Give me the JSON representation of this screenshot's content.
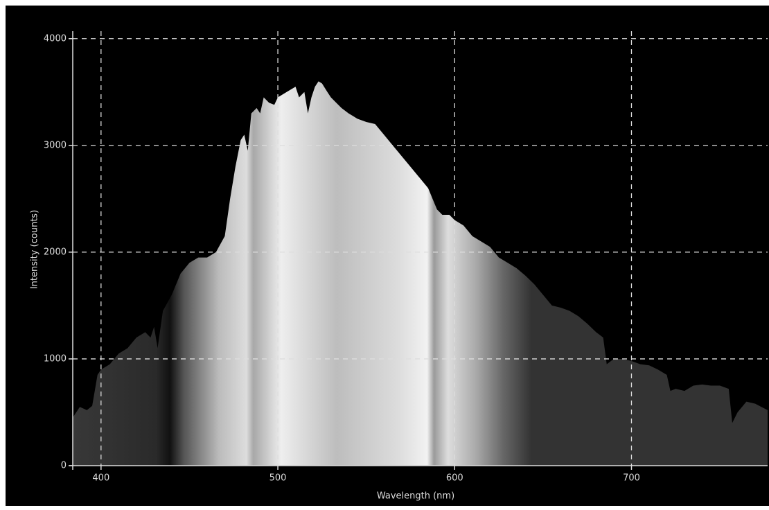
{
  "chart_data": {
    "type": "area",
    "x_label": "Wavelength (nm)",
    "y_label": "Intensity (counts)",
    "x": [
      384,
      388,
      392,
      395,
      398,
      400,
      405,
      410,
      415,
      420,
      425,
      428,
      430,
      432,
      435,
      440,
      445,
      450,
      455,
      460,
      465,
      470,
      473,
      476,
      479,
      481,
      483,
      485,
      488,
      490,
      492,
      495,
      498,
      500,
      505,
      510,
      512,
      515,
      517,
      519,
      521,
      523,
      525,
      528,
      530,
      533,
      536,
      540,
      545,
      550,
      555,
      560,
      565,
      570,
      575,
      580,
      585,
      590,
      593,
      597,
      600,
      605,
      610,
      615,
      620,
      625,
      630,
      635,
      640,
      645,
      650,
      655,
      660,
      665,
      670,
      675,
      680,
      684,
      686,
      690,
      695,
      700,
      705,
      710,
      715,
      720,
      722,
      725,
      730,
      735,
      740,
      745,
      750,
      755,
      757,
      760,
      765,
      770,
      777
    ],
    "values": [
      450,
      550,
      520,
      560,
      850,
      900,
      950,
      1050,
      1100,
      1200,
      1250,
      1200,
      1300,
      1100,
      1450,
      1600,
      1800,
      1900,
      1950,
      1950,
      2000,
      2150,
      2500,
      2800,
      3050,
      3100,
      2950,
      3300,
      3350,
      3300,
      3450,
      3400,
      3380,
      3450,
      3500,
      3550,
      3450,
      3500,
      3300,
      3450,
      3550,
      3600,
      3580,
      3500,
      3450,
      3400,
      3350,
      3300,
      3250,
      3220,
      3200,
      3100,
      3000,
      2900,
      2800,
      2700,
      2600,
      2400,
      2350,
      2350,
      2300,
      2250,
      2150,
      2100,
      2050,
      1950,
      1900,
      1850,
      1780,
      1700,
      1600,
      1500,
      1480,
      1450,
      1400,
      1330,
      1250,
      1200,
      950,
      1000,
      1000,
      980,
      950,
      940,
      900,
      850,
      700,
      720,
      700,
      750,
      760,
      750,
      750,
      720,
      400,
      500,
      600,
      580,
      520
    ],
    "xlim": [
      384,
      777
    ],
    "ylim": [
      0,
      4070
    ],
    "xticks": [
      400,
      500,
      600,
      700
    ],
    "yticks": [
      0,
      1000,
      2000,
      3000,
      4000
    ],
    "grid": true
  }
}
